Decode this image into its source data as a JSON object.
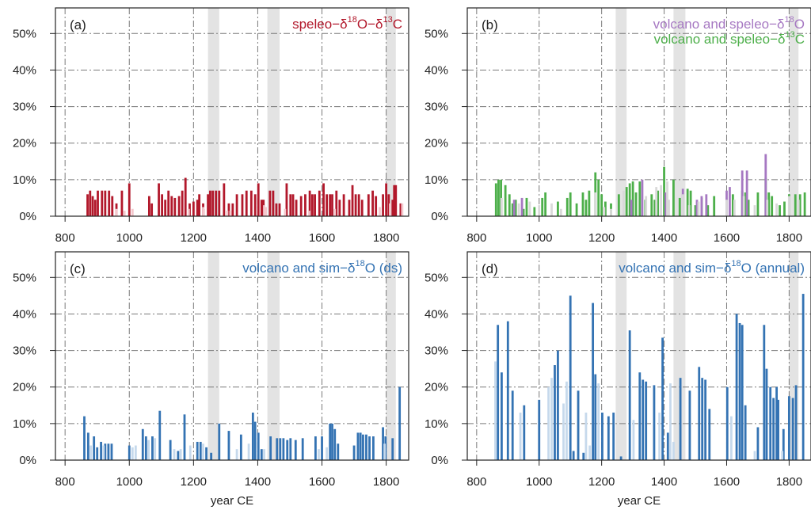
{
  "chart_data": [
    {
      "panel_label": "(a)",
      "type": "bar",
      "title_parts": [
        {
          "color": "#b2182b",
          "parts": [
            [
              "speleo−δ",
              ""
            ],
            [
              "18",
              "sup"
            ],
            [
              "O−δ",
              ""
            ],
            [
              "13",
              "sup"
            ],
            [
              "C",
              ""
            ]
          ]
        }
      ],
      "xlim": [
        770,
        1870
      ],
      "ylim": [
        0,
        0.57
      ],
      "x_ticks": [
        "800",
        "1000",
        "1200",
        "1400",
        "1600",
        "1800"
      ],
      "y_ticks": [
        "0%",
        "10%",
        "20%",
        "30%",
        "40%",
        "50%"
      ],
      "xlabel": "",
      "shaded_periods": [
        [
          1245,
          1280
        ],
        [
          1430,
          1468
        ],
        [
          1800,
          1830
        ]
      ],
      "series": [
        {
          "color": "#b2182b",
          "x": [
            870,
            878,
            886,
            894,
            902,
            915,
            925,
            937,
            947,
            960,
            977,
            1000,
            1062,
            1070,
            1092,
            1102,
            1112,
            1122,
            1132,
            1142,
            1155,
            1165,
            1175,
            1188,
            1200,
            1212,
            1218,
            1230,
            1245,
            1252,
            1260,
            1270,
            1280,
            1295,
            1310,
            1322,
            1335,
            1352,
            1365,
            1380,
            1392,
            1402,
            1412,
            1418,
            1438,
            1448,
            1458,
            1468,
            1490,
            1502,
            1510,
            1520,
            1535,
            1548,
            1562,
            1570,
            1578,
            1592,
            1605,
            1615,
            1625,
            1632,
            1645,
            1655,
            1668,
            1685,
            1695,
            1705,
            1715,
            1725,
            1745,
            1758,
            1768,
            1790,
            1800,
            1808,
            1820,
            1825,
            1830,
            1845
          ],
          "values": [
            0.06,
            0.07,
            0.055,
            0.045,
            0.07,
            0.07,
            0.07,
            0.07,
            0.055,
            0.035,
            0.07,
            0.09,
            0.055,
            0.035,
            0.09,
            0.06,
            0.045,
            0.07,
            0.055,
            0.05,
            0.055,
            0.07,
            0.105,
            0.035,
            0.04,
            0.045,
            0.06,
            0.035,
            0.06,
            0.07,
            0.07,
            0.07,
            0.07,
            0.09,
            0.035,
            0.035,
            0.06,
            0.06,
            0.07,
            0.07,
            0.06,
            0.09,
            0.045,
            0.045,
            0.07,
            0.07,
            0.035,
            0.035,
            0.09,
            0.06,
            0.06,
            0.045,
            0.055,
            0.06,
            0.07,
            0.06,
            0.06,
            0.07,
            0.09,
            0.06,
            0.06,
            0.06,
            0.07,
            0.045,
            0.06,
            0.045,
            0.085,
            0.06,
            0.06,
            0.045,
            0.06,
            0.07,
            0.055,
            0.06,
            0.09,
            0.06,
            0.045,
            0.085,
            0.085,
            0.035
          ]
        },
        {
          "color": "#f4c8cd",
          "x": [
            960,
            985,
            1010,
            1185,
            1230,
            1232,
            1305,
            1315,
            1420,
            1425,
            1485,
            1560,
            1640,
            1780,
            1812,
            1850
          ],
          "values": [
            0.02,
            0.015,
            0.02,
            0.02,
            0.025,
            0.02,
            0.015,
            0.015,
            0.03,
            0.025,
            0.02,
            0.015,
            0.02,
            0.025,
            0.035,
            0.035
          ]
        }
      ]
    },
    {
      "panel_label": "(b)",
      "type": "bar",
      "title_parts": [
        {
          "color": "#a678c2",
          "parts": [
            [
              "volcano and speleo−δ",
              ""
            ],
            [
              "18",
              "sup"
            ],
            [
              "O",
              ""
            ]
          ]
        },
        {
          "color": "#4daf4a",
          "parts": [
            [
              "volcano and speleo−δ",
              ""
            ],
            [
              "13",
              "sup"
            ],
            [
              "C",
              ""
            ]
          ]
        }
      ],
      "xlim": [
        770,
        1870
      ],
      "ylim": [
        0,
        0.57
      ],
      "x_ticks": [
        "800",
        "1000",
        "1200",
        "1400",
        "1600",
        "1800"
      ],
      "y_ticks": [
        "0%",
        "10%",
        "20%",
        "30%",
        "40%",
        "50%"
      ],
      "xlabel": "",
      "shaded_periods": [
        [
          1245,
          1280
        ],
        [
          1430,
          1468
        ],
        [
          1800,
          1830
        ]
      ],
      "series": [
        {
          "color": "#4daf4a",
          "x": [
            862,
            870,
            878,
            892,
            905,
            915,
            925,
            950,
            960,
            985,
            1010,
            1020,
            1060,
            1090,
            1100,
            1120,
            1140,
            1150,
            1160,
            1180,
            1190,
            1200,
            1212,
            1230,
            1255,
            1280,
            1290,
            1300,
            1310,
            1322,
            1340,
            1360,
            1370,
            1380,
            1400,
            1430,
            1450,
            1475,
            1485,
            1500,
            1520,
            1540,
            1560,
            1620,
            1650,
            1660,
            1670,
            1700,
            1725,
            1735,
            1745,
            1770,
            1785,
            1800,
            1820,
            1835,
            1850
          ],
          "values": [
            0.09,
            0.1,
            0.1,
            0.085,
            0.06,
            0.035,
            0.045,
            0.02,
            0.05,
            0.025,
            0.05,
            0.065,
            0.04,
            0.05,
            0.065,
            0.035,
            0.065,
            0.045,
            0.07,
            0.12,
            0.1,
            0.06,
            0.04,
            0.035,
            0.06,
            0.08,
            0.09,
            0.095,
            0.065,
            0.095,
            0.045,
            0.06,
            0.045,
            0.07,
            0.135,
            0.1,
            0.05,
            0.075,
            0.07,
            0.03,
            0.05,
            0.03,
            0.055,
            0.06,
            0.07,
            0.065,
            0.045,
            0.065,
            0.105,
            0.065,
            0.055,
            0.03,
            0.04,
            0.06,
            0.06,
            0.06,
            0.065
          ]
        },
        {
          "color": "#a678c2",
          "x": [
            920,
            945,
            1295,
            1330,
            1405,
            1460,
            1505,
            1520,
            1535,
            1600,
            1610,
            1650,
            1665,
            1725
          ],
          "values": [
            0.045,
            0.05,
            0.045,
            0.1,
            0.065,
            0.075,
            0.045,
            0.055,
            0.06,
            0.07,
            0.08,
            0.125,
            0.125,
            0.17
          ]
        },
        {
          "color": "#d9d9d9",
          "x": [
            880,
            935,
            970,
            1000,
            1040,
            1070,
            1180,
            1208,
            1230,
            1270,
            1342,
            1375,
            1390,
            1410,
            1415,
            1460,
            1480,
            1510,
            1600,
            1625,
            1655,
            1690,
            1730,
            1760,
            1800,
            1830
          ],
          "values": [
            0.05,
            0.035,
            0.04,
            0.03,
            0.035,
            0.02,
            0.065,
            0.025,
            0.02,
            0.07,
            0.055,
            0.08,
            0.085,
            0.095,
            0.045,
            0.06,
            0.03,
            0.04,
            0.045,
            0.045,
            0.055,
            0.03,
            0.045,
            0.035,
            0.055,
            0.045
          ]
        }
      ]
    },
    {
      "panel_label": "(c)",
      "type": "bar",
      "title_parts": [
        {
          "color": "#3473b3",
          "parts": [
            [
              "volcano and sim−δ",
              ""
            ],
            [
              "18",
              "sup"
            ],
            [
              "O (ds)",
              ""
            ]
          ]
        }
      ],
      "xlim": [
        770,
        1870
      ],
      "ylim": [
        0,
        0.57
      ],
      "x_ticks": [
        "800",
        "1000",
        "1200",
        "1400",
        "1600",
        "1800"
      ],
      "y_ticks": [
        "0%",
        "10%",
        "20%",
        "30%",
        "40%",
        "50%"
      ],
      "xlabel": "year CE",
      "shaded_periods": [
        [
          1245,
          1280
        ],
        [
          1430,
          1468
        ],
        [
          1800,
          1830
        ]
      ],
      "series": [
        {
          "color": "#3473b3",
          "x": [
            860,
            872,
            890,
            900,
            912,
            925,
            935,
            945,
            1000,
            1042,
            1052,
            1072,
            1095,
            1128,
            1152,
            1172,
            1212,
            1222,
            1240,
            1255,
            1280,
            1310,
            1348,
            1385,
            1392,
            1402,
            1412,
            1440,
            1460,
            1470,
            1480,
            1492,
            1502,
            1518,
            1540,
            1580,
            1600,
            1625,
            1632,
            1640,
            1650,
            1700,
            1712,
            1720,
            1728,
            1738,
            1748,
            1760,
            1790,
            1798,
            1820,
            1842
          ],
          "values": [
            0.12,
            0.075,
            0.065,
            0.035,
            0.05,
            0.045,
            0.045,
            0.045,
            0.04,
            0.085,
            0.065,
            0.065,
            0.135,
            0.055,
            0.025,
            0.125,
            0.05,
            0.05,
            0.035,
            0.02,
            0.1,
            0.08,
            0.07,
            0.13,
            0.105,
            0.075,
            0.03,
            0.065,
            0.06,
            0.06,
            0.06,
            0.055,
            0.06,
            0.055,
            0.06,
            0.065,
            0.065,
            0.1,
            0.1,
            0.085,
            0.045,
            0.04,
            0.075,
            0.075,
            0.07,
            0.07,
            0.065,
            0.065,
            0.09,
            0.065,
            0.06,
            0.2
          ]
        },
        {
          "color": "#c6d9ec",
          "x": [
            880,
            920,
            1010,
            1020,
            1060,
            1080,
            1140,
            1160,
            1190,
            1230,
            1335,
            1372,
            1420,
            1590,
            1615,
            1795
          ],
          "values": [
            0.04,
            0.04,
            0.035,
            0.04,
            0.055,
            0.06,
            0.03,
            0.03,
            0.04,
            0.045,
            0.03,
            0.045,
            0.03,
            0.03,
            0.035,
            0.045
          ]
        }
      ]
    },
    {
      "panel_label": "(d)",
      "type": "bar",
      "title_parts": [
        {
          "color": "#3473b3",
          "parts": [
            [
              "volcano and sim−δ",
              ""
            ],
            [
              "18",
              "sup"
            ],
            [
              "O (annual)",
              ""
            ]
          ]
        }
      ],
      "xlim": [
        770,
        1870
      ],
      "ylim": [
        0,
        0.57
      ],
      "x_ticks": [
        "800",
        "1000",
        "1200",
        "1400",
        "1600",
        "1800"
      ],
      "y_ticks": [
        "0%",
        "10%",
        "20%",
        "30%",
        "40%",
        "50%"
      ],
      "xlabel": "year CE",
      "shaded_periods": [
        [
          1245,
          1280
        ],
        [
          1430,
          1468
        ],
        [
          1800,
          1830
        ]
      ],
      "series": [
        {
          "color": "#3473b3",
          "x": [
            868,
            880,
            900,
            915,
            952,
            1000,
            1050,
            1060,
            1100,
            1110,
            1125,
            1142,
            1172,
            1180,
            1202,
            1222,
            1238,
            1262,
            1290,
            1322,
            1332,
            1342,
            1368,
            1395,
            1412,
            1452,
            1482,
            1512,
            1522,
            1532,
            1545,
            1602,
            1632,
            1642,
            1650,
            1660,
            1700,
            1720,
            1728,
            1740,
            1750,
            1760,
            1765,
            1782,
            1800,
            1812,
            1822,
            1845
          ],
          "values": [
            0.37,
            0.24,
            0.38,
            0.19,
            0.15,
            0.165,
            0.26,
            0.3,
            0.45,
            0.025,
            0.19,
            0.02,
            0.43,
            0.235,
            0.13,
            0.12,
            0.13,
            0.01,
            0.355,
            0.24,
            0.22,
            0.215,
            0.205,
            0.335,
            0.075,
            0.225,
            0.19,
            0.255,
            0.225,
            0.22,
            0.14,
            0.2,
            0.4,
            0.375,
            0.37,
            0.15,
            0.09,
            0.37,
            0.25,
            0.2,
            0.17,
            0.2,
            0.165,
            0.085,
            0.175,
            0.17,
            0.205,
            0.455
          ]
        },
        {
          "color": "#c6d9ec",
          "x": [
            860,
            940,
            1030,
            1040,
            1078,
            1088,
            1150,
            1162,
            1190,
            1302,
            1385,
            1420,
            1430,
            1615,
            1690,
            1778
          ],
          "values": [
            0.27,
            0.13,
            0.2,
            0.225,
            0.155,
            0.215,
            0.13,
            0.04,
            0.21,
            0.11,
            0.13,
            0.21,
            0.05,
            0.12,
            0.025,
            0.025
          ]
        }
      ]
    }
  ]
}
